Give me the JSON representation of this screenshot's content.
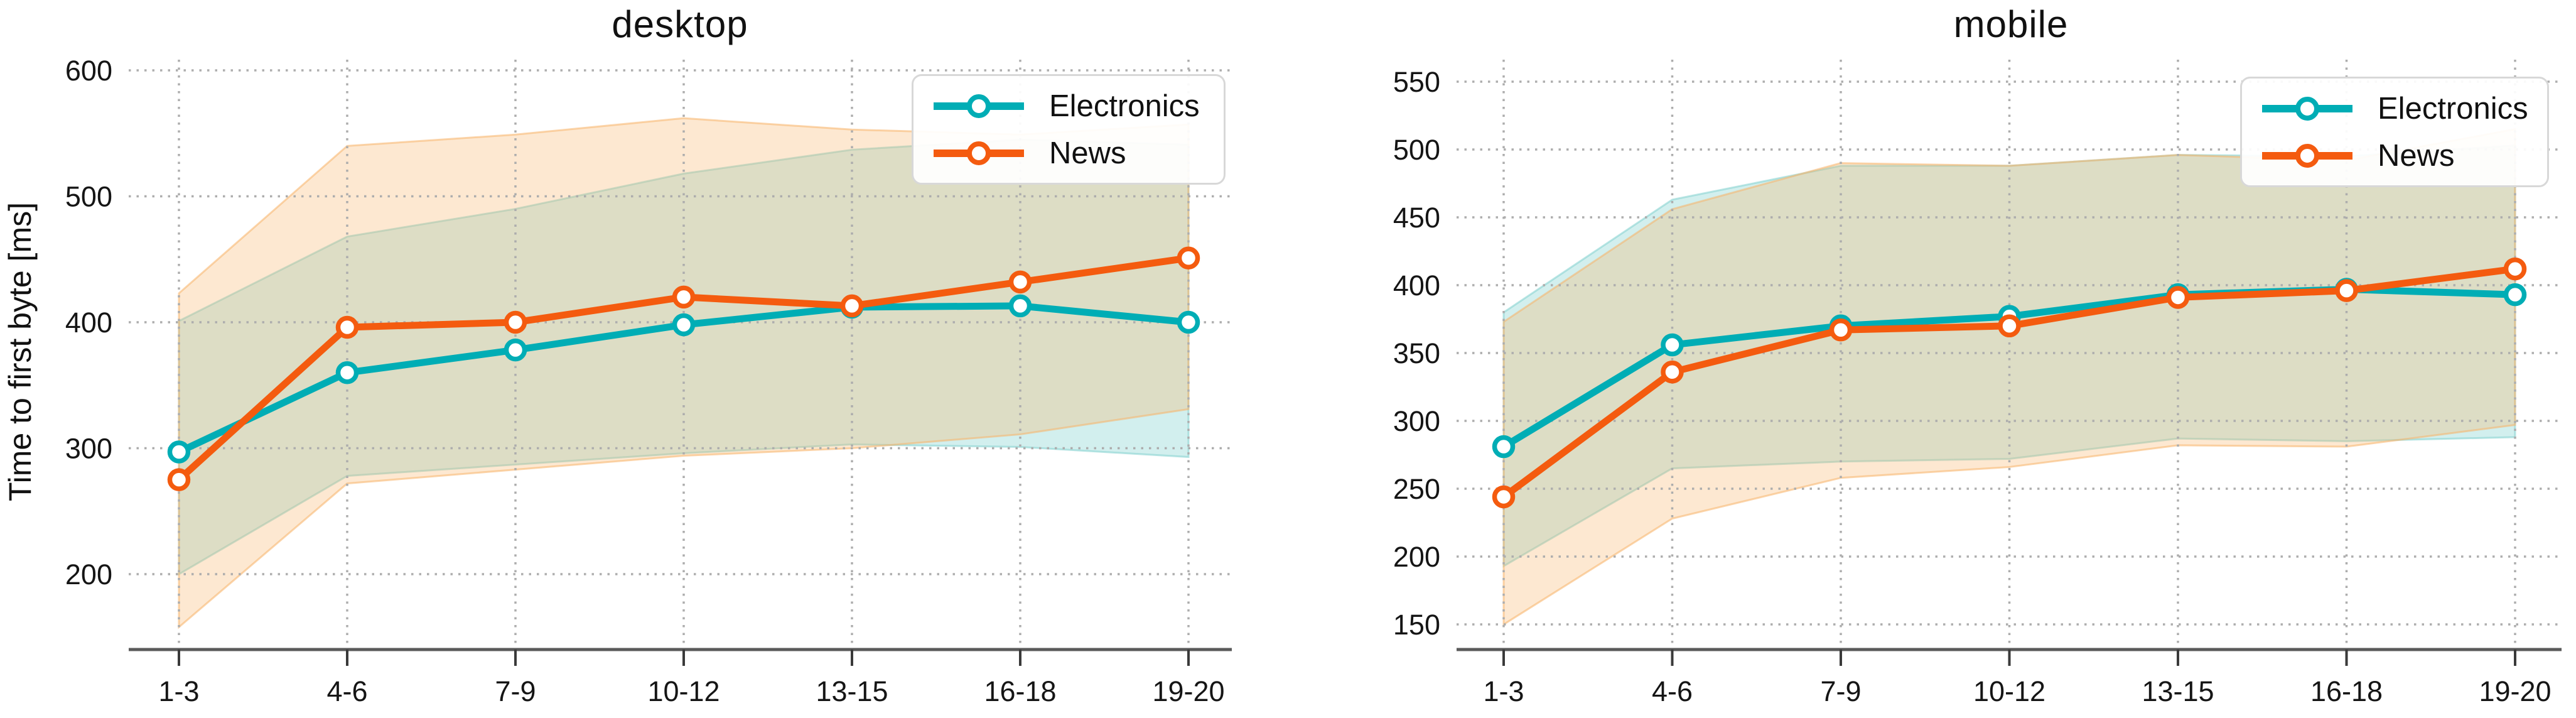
{
  "figure": {
    "background": "#ffffff",
    "grid_color": "#adadad",
    "spine_color": "#5a5a5a",
    "tick_color": "#3a3a3a",
    "text_color": "#111111",
    "legend_border_color": "#d8d8d8"
  },
  "charts": [
    {
      "title": "desktop",
      "ylabel": "Time to first byte [ms]",
      "categories": [
        "1-3",
        "4-6",
        "7-9",
        "10-12",
        "13-15",
        "16-18",
        "19-20"
      ],
      "yticks": [
        200,
        300,
        400,
        500,
        600
      ],
      "legend_labels": [
        "Electronics",
        "News"
      ],
      "series": [
        {
          "name": "Electronics",
          "color": "#00adb5",
          "band_color": "#7fd0ce",
          "values": [
            297,
            360,
            378,
            398,
            412,
            413,
            400
          ],
          "band_low": [
            200,
            278,
            287,
            296,
            303,
            301,
            293
          ],
          "band_high": [
            401,
            468,
            490,
            518,
            537,
            545,
            541
          ]
        },
        {
          "name": "News",
          "color": "#f45b0f",
          "band_color": "#f7b267",
          "values": [
            275,
            396,
            400,
            420,
            413,
            432,
            451
          ],
          "band_low": [
            158,
            272,
            283,
            294,
            300,
            311,
            331
          ],
          "band_high": [
            423,
            540,
            549,
            562,
            553,
            549,
            557
          ]
        }
      ]
    },
    {
      "title": "mobile",
      "ylabel": "",
      "categories": [
        "1-3",
        "4-6",
        "7-9",
        "10-12",
        "13-15",
        "16-18",
        "19-20"
      ],
      "yticks": [
        150,
        200,
        250,
        300,
        350,
        400,
        450,
        500,
        550
      ],
      "legend_labels": [
        "Electronics",
        "News"
      ],
      "series": [
        {
          "name": "Electronics",
          "color": "#00adb5",
          "band_color": "#7fd0ce",
          "values": [
            281,
            356,
            370,
            377,
            393,
            397,
            393
          ],
          "band_low": [
            193,
            265,
            270,
            272,
            287,
            285,
            288
          ],
          "band_high": [
            380,
            463,
            488,
            488,
            496,
            495,
            503
          ]
        },
        {
          "name": "News",
          "color": "#f45b0f",
          "band_color": "#f7b267",
          "values": [
            244,
            336,
            367,
            370,
            391,
            396,
            412
          ],
          "band_low": [
            150,
            228,
            258,
            266,
            282,
            281,
            297
          ],
          "band_high": [
            373,
            456,
            490,
            488,
            496,
            492,
            515
          ]
        }
      ]
    }
  ],
  "chart_data": [
    {
      "type": "line",
      "title": "desktop",
      "xlabel": "",
      "ylabel": "Time to first byte [ms]",
      "categories": [
        "1-3",
        "4-6",
        "7-9",
        "10-12",
        "13-15",
        "16-18",
        "19-20"
      ],
      "ylim": [
        141,
        608
      ],
      "yticks": [
        200,
        300,
        400,
        500,
        600
      ],
      "grid": true,
      "legend_position": "upper right",
      "series": [
        {
          "name": "Electronics",
          "values": [
            297,
            360,
            378,
            398,
            412,
            413,
            400
          ],
          "band_low": [
            200,
            278,
            287,
            296,
            303,
            301,
            293
          ],
          "band_high": [
            401,
            468,
            490,
            518,
            537,
            545,
            541
          ]
        },
        {
          "name": "News",
          "values": [
            275,
            396,
            400,
            420,
            413,
            432,
            451
          ],
          "band_low": [
            158,
            272,
            283,
            294,
            300,
            311,
            331
          ],
          "band_high": [
            423,
            540,
            549,
            562,
            553,
            549,
            557
          ]
        }
      ]
    },
    {
      "type": "line",
      "title": "mobile",
      "xlabel": "",
      "ylabel": "",
      "categories": [
        "1-3",
        "4-6",
        "7-9",
        "10-12",
        "13-15",
        "16-18",
        "19-20"
      ],
      "ylim": [
        131,
        566
      ],
      "yticks": [
        150,
        200,
        250,
        300,
        350,
        400,
        450,
        500,
        550
      ],
      "grid": true,
      "legend_position": "upper right",
      "series": [
        {
          "name": "Electronics",
          "values": [
            281,
            356,
            370,
            377,
            393,
            397,
            393
          ],
          "band_low": [
            193,
            265,
            270,
            272,
            287,
            285,
            288
          ],
          "band_high": [
            380,
            463,
            488,
            488,
            496,
            495,
            503
          ]
        },
        {
          "name": "News",
          "values": [
            244,
            336,
            367,
            370,
            391,
            396,
            412
          ],
          "band_low": [
            150,
            228,
            258,
            266,
            282,
            281,
            297
          ],
          "band_high": [
            373,
            456,
            490,
            488,
            496,
            492,
            515
          ]
        }
      ]
    }
  ]
}
